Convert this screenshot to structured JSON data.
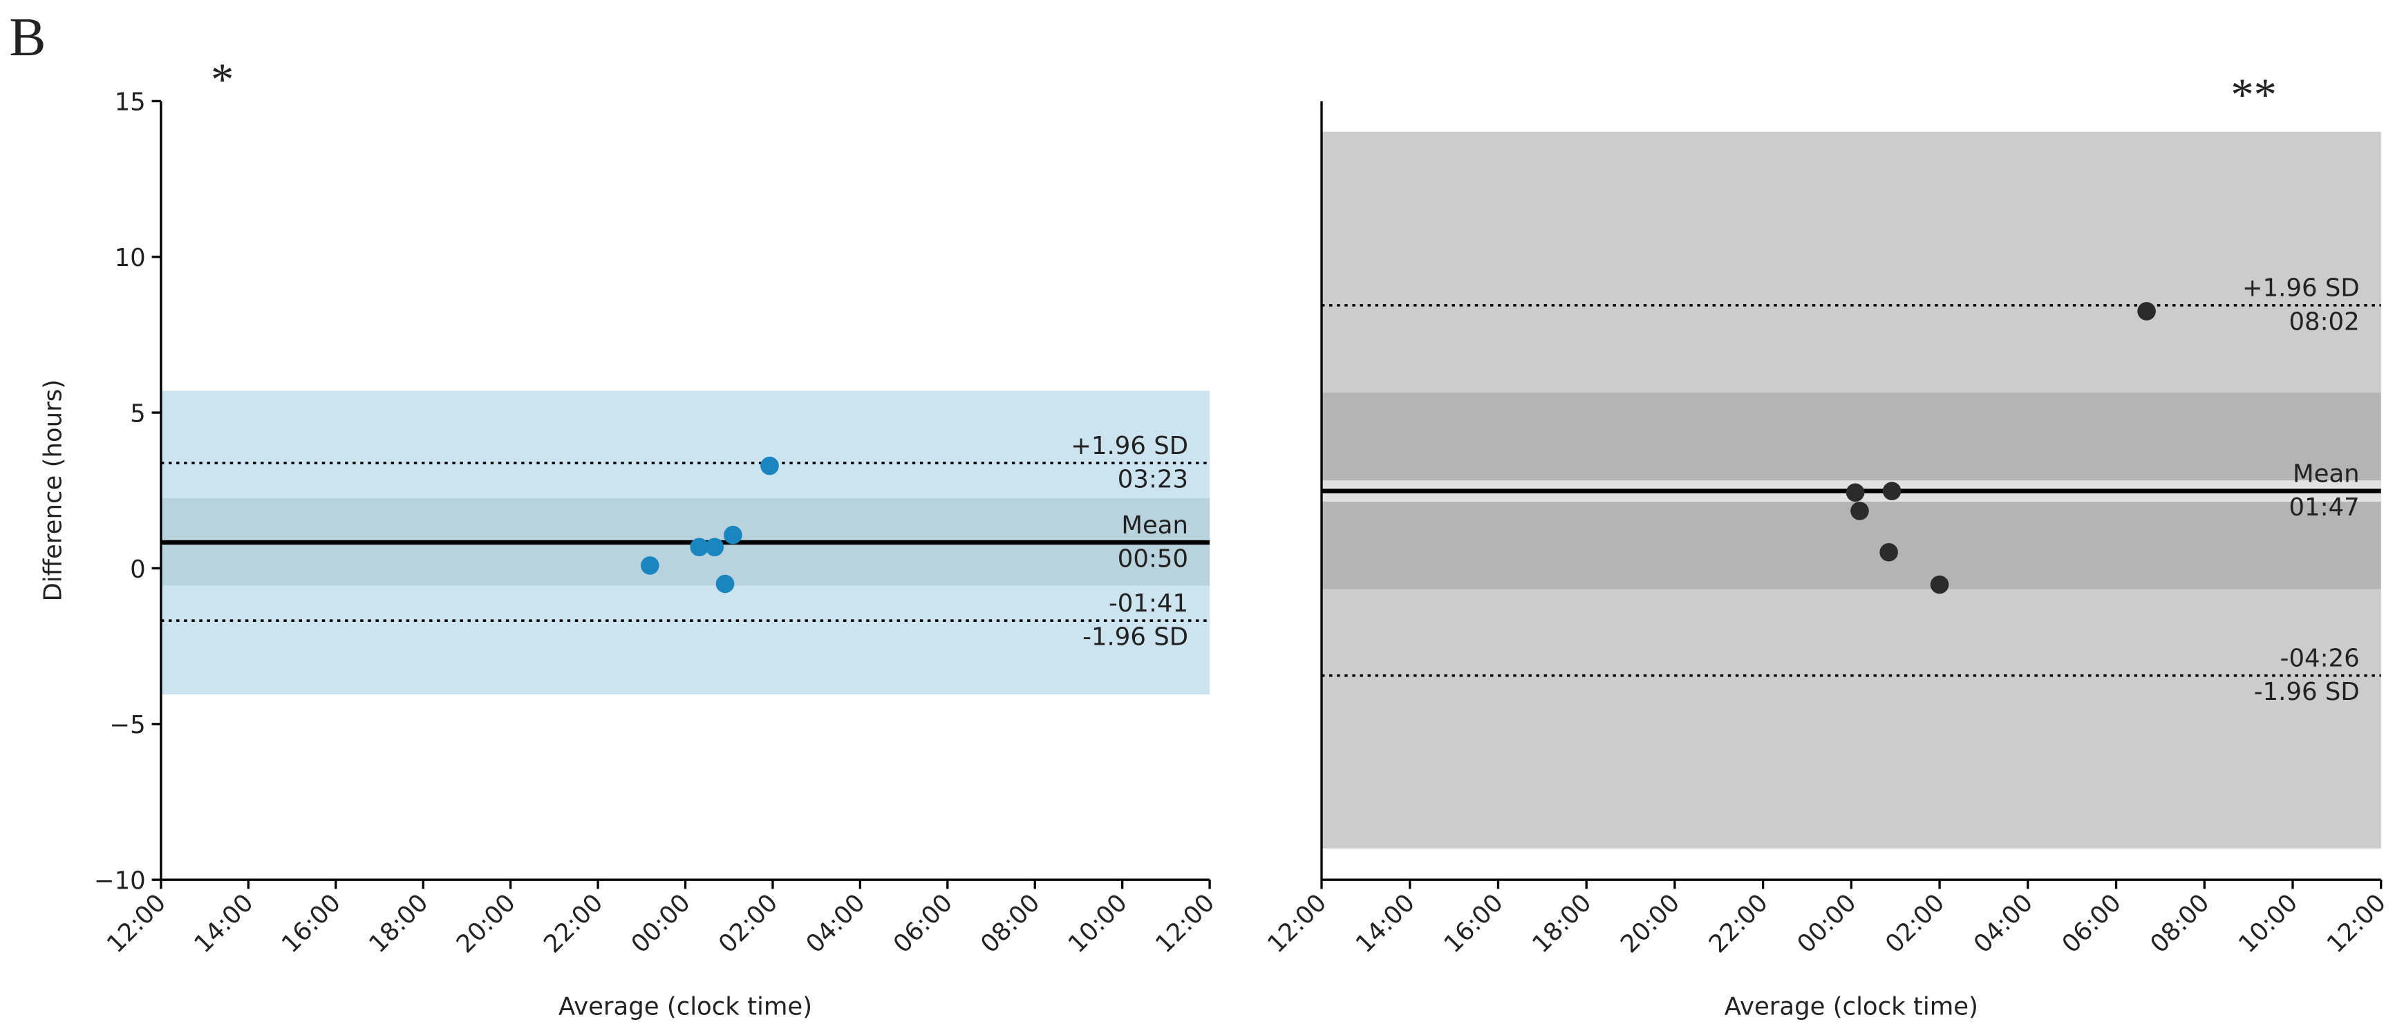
{
  "figure_label": "B",
  "chart_data": [
    {
      "type": "scatter",
      "annotation": "*",
      "x_label": "Average (clock time)",
      "y_label": "Difference (hours)",
      "xlim": [
        0,
        24
      ],
      "ylim": [
        -10,
        15
      ],
      "xticks": [
        {
          "value": 0,
          "label": "12:00"
        },
        {
          "value": 2,
          "label": "14:00"
        },
        {
          "value": 4,
          "label": "16:00"
        },
        {
          "value": 6,
          "label": "18:00"
        },
        {
          "value": 8,
          "label": "20:00"
        },
        {
          "value": 10,
          "label": "22:00"
        },
        {
          "value": 12,
          "label": "00:00"
        },
        {
          "value": 14,
          "label": "02:00"
        },
        {
          "value": 16,
          "label": "04:00"
        },
        {
          "value": 18,
          "label": "06:00"
        },
        {
          "value": 20,
          "label": "08:00"
        },
        {
          "value": 22,
          "label": "10:00"
        },
        {
          "value": 24,
          "label": "12:00"
        }
      ],
      "yticks": [
        {
          "value": -10,
          "label": "−10"
        },
        {
          "value": -5,
          "label": "−5"
        },
        0,
        5,
        10,
        15
      ],
      "bands": [
        {
          "low": -4.05,
          "high": 5.7,
          "color": "#cce3f0"
        },
        {
          "low": -0.55,
          "high": 2.25,
          "color": "#b8d2de"
        }
      ],
      "lines": [
        {
          "name": "+1.96 SD",
          "value": 3.38,
          "value_label": "03:23",
          "style": "dotted"
        },
        {
          "name": "Mean",
          "value": 0.83,
          "value_label": "00:50",
          "style": "solid"
        },
        {
          "name": "-1.96 SD",
          "value": -1.68,
          "value_label": "-01:41",
          "style": "dotted"
        }
      ],
      "series": [
        {
          "color": "#1a86c0",
          "x": [
            11.19,
            12.32,
            12.67,
            13.09,
            12.91,
            13.93
          ],
          "values": [
            0.09,
            0.68,
            0.68,
            1.07,
            -0.5,
            3.29
          ]
        }
      ]
    },
    {
      "type": "scatter",
      "annotation": "**",
      "x_label": "Average (clock time)",
      "xlim": [
        0,
        24
      ],
      "ylim": [
        -11.3,
        14.9
      ],
      "xticks": [
        {
          "value": 0,
          "label": "12:00"
        },
        {
          "value": 2,
          "label": "14:00"
        },
        {
          "value": 4,
          "label": "16:00"
        },
        {
          "value": 6,
          "label": "18:00"
        },
        {
          "value": 8,
          "label": "20:00"
        },
        {
          "value": 10,
          "label": "22:00"
        },
        {
          "value": 12,
          "label": "00:00"
        },
        {
          "value": 14,
          "label": "02:00"
        },
        {
          "value": 16,
          "label": "04:00"
        },
        {
          "value": 18,
          "label": "06:00"
        },
        {
          "value": 20,
          "label": "08:00"
        },
        {
          "value": 22,
          "label": "10:00"
        },
        {
          "value": 24,
          "label": "12:00"
        }
      ],
      "bands": [
        {
          "low": -10.25,
          "high": 13.87,
          "color": "#cccccc"
        },
        {
          "low": -1.52,
          "high": 5.09,
          "color": "#b4b4b4"
        },
        {
          "low": 1.42,
          "high": 2.14,
          "color": "#e2e2e2"
        }
      ],
      "lines": [
        {
          "name": "+1.96 SD",
          "value": 8.03,
          "value_label": "08:02",
          "style": "dotted"
        },
        {
          "name": "Mean",
          "value": 1.78,
          "value_label": "01:47",
          "style": "solid"
        },
        {
          "name": "-1.96 SD",
          "value": -4.43,
          "value_label": "-04:26",
          "style": "dotted"
        }
      ],
      "series": [
        {
          "color": "#2b2b2b",
          "x": [
            12.09,
            12.19,
            12.92,
            12.85,
            14.0,
            18.69
          ],
          "values": [
            1.73,
            1.11,
            1.78,
            -0.28,
            -1.37,
            7.83
          ]
        }
      ]
    }
  ]
}
